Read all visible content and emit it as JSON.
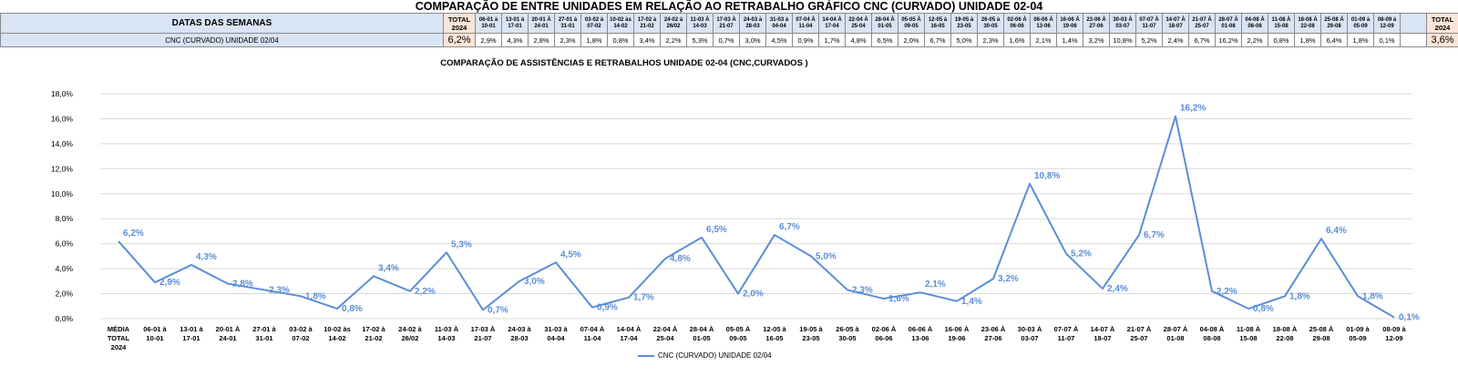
{
  "top_title": "COMPARAÇÃO DE ENTRE UNIDADES EM RELAÇÃO AO RETRABALHO GRÁFICO CNC (CURVADO) UNIDADE 02-04",
  "table": {
    "header_label": "DATAS DAS SEMANAS",
    "row_label": "CNC (CURVADO) UNIDADE 02/04",
    "total_left_header": [
      "TOTAL",
      "2024"
    ],
    "total_right_header": [
      "TOTAL",
      "2024"
    ],
    "total_left_value": "6,2%",
    "total_right_value": "3,6%",
    "weeks": [
      {
        "a": "06-01 à",
        "b": "10-01",
        "v": "2,9%"
      },
      {
        "a": "13-01 à",
        "b": "17-01",
        "v": "4,3%"
      },
      {
        "a": "20-01 À",
        "b": "24-01",
        "v": "2,8%"
      },
      {
        "a": "27-01 à",
        "b": "31-01",
        "v": "2,3%"
      },
      {
        "a": "03-02 à",
        "b": "07-02",
        "v": "1,8%"
      },
      {
        "a": "10-02 às",
        "b": "14-02",
        "v": "0,8%"
      },
      {
        "a": "17-02 à",
        "b": "21-02",
        "v": "3,4%"
      },
      {
        "a": "24-02 à",
        "b": "26/02",
        "v": "2,2%"
      },
      {
        "a": "11-03 À",
        "b": "14-03",
        "v": "5,3%"
      },
      {
        "a": "17-03 À",
        "b": "21-07",
        "v": "0,7%"
      },
      {
        "a": "24-03 à",
        "b": "28-03",
        "v": "3,0%"
      },
      {
        "a": "31-03 à",
        "b": "04-04",
        "v": "4,5%"
      },
      {
        "a": "07-04 À",
        "b": "11-04",
        "v": "0,9%"
      },
      {
        "a": "14-04 À",
        "b": "17-04",
        "v": "1,7%"
      },
      {
        "a": "22-04 À",
        "b": "25-04",
        "v": "4,8%"
      },
      {
        "a": "28-04 À",
        "b": "01-05",
        "v": "6,5%"
      },
      {
        "a": "05-05 À",
        "b": "09-05",
        "v": "2,0%"
      },
      {
        "a": "12-05 à",
        "b": "16-05",
        "v": "6,7%"
      },
      {
        "a": "19-05 à",
        "b": "23-05",
        "v": "5,0%"
      },
      {
        "a": "26-05 à",
        "b": "30-05",
        "v": "2,3%"
      },
      {
        "a": "02-06 À",
        "b": "06-06",
        "v": "1,6%"
      },
      {
        "a": "06-06 À",
        "b": "13-06",
        "v": "2,1%"
      },
      {
        "a": "16-06 À",
        "b": "19-06",
        "v": "1,4%"
      },
      {
        "a": "23-06 À",
        "b": "27-06",
        "v": "3,2%"
      },
      {
        "a": "30-03 À",
        "b": "03-07",
        "v": "10,8%"
      },
      {
        "a": "07-07 À",
        "b": "11-07",
        "v": "5,2%"
      },
      {
        "a": "14-07 À",
        "b": "18-07",
        "v": "2,4%"
      },
      {
        "a": "21-07 À",
        "b": "25-07",
        "v": "6,7%"
      },
      {
        "a": "28-07 À",
        "b": "01-08",
        "v": "16,2%"
      },
      {
        "a": "04-08 À",
        "b": "08-08",
        "v": "2,2%"
      },
      {
        "a": "11-08 À",
        "b": "15-08",
        "v": "0,8%"
      },
      {
        "a": "18-08 À",
        "b": "22-08",
        "v": "1,8%"
      },
      {
        "a": "25-08 À",
        "b": "29-08",
        "v": "6,4%"
      },
      {
        "a": "01-09 à",
        "b": "05-09",
        "v": "1,8%"
      },
      {
        "a": "08-09 à",
        "b": "12-09",
        "v": "0,1%"
      },
      {
        "a": "",
        "b": "",
        "v": ""
      }
    ]
  },
  "colors": {
    "series": "#5b8ed6",
    "label": "#5b8ed6",
    "header_fill": "#d9e4f5",
    "total_fill": "#fbe5d6",
    "grid": "#d9d9d9"
  },
  "chart_data": {
    "type": "line",
    "title": "COMPARAÇÃO DE ASSISTÊNCIAS E RETRABALHOS UNIDADE 02-04  (CNC,CURVADOS )",
    "xlabel": "",
    "ylabel": "",
    "ylim": [
      0,
      18
    ],
    "yticks": [
      "0,0%",
      "2,0%",
      "4,0%",
      "6,0%",
      "8,0%",
      "10,0%",
      "12,0%",
      "14,0%",
      "16,0%",
      "18,0%"
    ],
    "grid": true,
    "legend": "bottom",
    "categories": [
      [
        "MÉDIA",
        "TOTAL",
        "2024"
      ],
      [
        "06-01 à",
        "10-01"
      ],
      [
        "13-01 à",
        "17-01"
      ],
      [
        "20-01 À",
        "24-01"
      ],
      [
        "27-01 à",
        "31-01"
      ],
      [
        "03-02 à",
        "07-02"
      ],
      [
        "10-02 às",
        "14-02"
      ],
      [
        "17-02 à",
        "21-02"
      ],
      [
        "24-02 à",
        "26/02"
      ],
      [
        "11-03 À",
        "14-03"
      ],
      [
        "17-03 À",
        "21-07"
      ],
      [
        "24-03 à",
        "28-03"
      ],
      [
        "31-03 à",
        "04-04"
      ],
      [
        "07-04 À",
        "11-04"
      ],
      [
        "14-04 À",
        "17-04"
      ],
      [
        "22-04 À",
        "25-04"
      ],
      [
        "28-04 À",
        "01-05"
      ],
      [
        "05-05 À",
        "09-05"
      ],
      [
        "12-05 à",
        "16-05"
      ],
      [
        "19-05 à",
        "23-05"
      ],
      [
        "26-05 à",
        "30-05"
      ],
      [
        "02-06 À",
        "06-06"
      ],
      [
        "06-06 À",
        "13-06"
      ],
      [
        "16-06 À",
        "19-06"
      ],
      [
        "23-06 À",
        "27-06"
      ],
      [
        "30-03 À",
        "03-07"
      ],
      [
        "07-07 À",
        "11-07"
      ],
      [
        "14-07 À",
        "18-07"
      ],
      [
        "21-07 À",
        "25-07"
      ],
      [
        "28-07 À",
        "01-08"
      ],
      [
        "04-08 À",
        "08-08"
      ],
      [
        "11-08 À",
        "15-08"
      ],
      [
        "18-08 À",
        "22-08"
      ],
      [
        "25-08 À",
        "29-08"
      ],
      [
        "01-09 à",
        "05-09"
      ],
      [
        "08-09 à",
        "12-09"
      ]
    ],
    "series": [
      {
        "name": "CNC (CURVADO) UNIDADE 02/04",
        "values": [
          6.2,
          2.9,
          4.3,
          2.8,
          2.3,
          1.8,
          0.8,
          3.4,
          2.2,
          5.3,
          0.7,
          3.0,
          4.5,
          0.9,
          1.7,
          4.8,
          6.5,
          2.0,
          6.7,
          5.0,
          2.3,
          1.6,
          2.1,
          1.4,
          3.2,
          10.8,
          5.2,
          2.4,
          6.7,
          16.2,
          2.2,
          0.8,
          1.8,
          6.4,
          1.8,
          0.1
        ],
        "labels": [
          "6,2%",
          "2,9%",
          "4,3%",
          "2,8%",
          "2,3%",
          "1,8%",
          "0,8%",
          "3,4%",
          "2,2%",
          "5,3%",
          "0,7%",
          "3,0%",
          "4,5%",
          "0,9%",
          "1,7%",
          "4,8%",
          "6,5%",
          "2,0%",
          "6,7%",
          "5,0%",
          "2,3%",
          "1,6%",
          "2,1%",
          "1,4%",
          "3,2%",
          "10,8%",
          "5,2%",
          "2,4%",
          "6,7%",
          "16,2%",
          "2,2%",
          "0,8%",
          "1,8%",
          "6,4%",
          "1,8%",
          "0,1%"
        ]
      }
    ]
  }
}
